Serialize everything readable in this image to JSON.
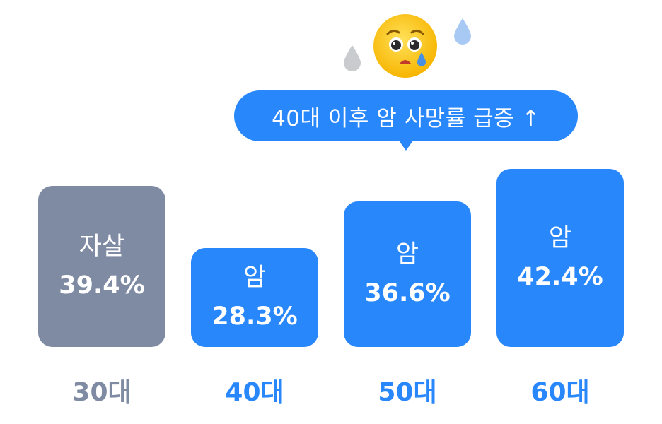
{
  "colors": {
    "accent": "#2887fb",
    "neutral": "#7f8aa3",
    "background": "#ffffff",
    "bar_text": "#ffffff",
    "drop_blue": "#a9c9f5",
    "drop_gray": "#c9cbcf"
  },
  "icons": {
    "emoji": "worried-face-with-tear-icon",
    "drops": "sweat-drop-icon"
  },
  "callout": {
    "text": "40대 이후 암 사망률 급증 ↑"
  },
  "chart_data": {
    "type": "bar",
    "categories": [
      "30대",
      "40대",
      "50대",
      "60대"
    ],
    "series": [
      {
        "labels": [
          "자살",
          "암",
          "암",
          "암"
        ],
        "values": [
          39.4,
          28.3,
          36.6,
          42.4
        ],
        "display": [
          "39.4%",
          "28.3%",
          "36.6%",
          "42.4%"
        ]
      }
    ],
    "highlight": [
      false,
      true,
      true,
      true
    ],
    "title": "",
    "xlabel": "",
    "ylabel": "",
    "ylim": [
      0,
      42.4
    ],
    "grid": false
  }
}
